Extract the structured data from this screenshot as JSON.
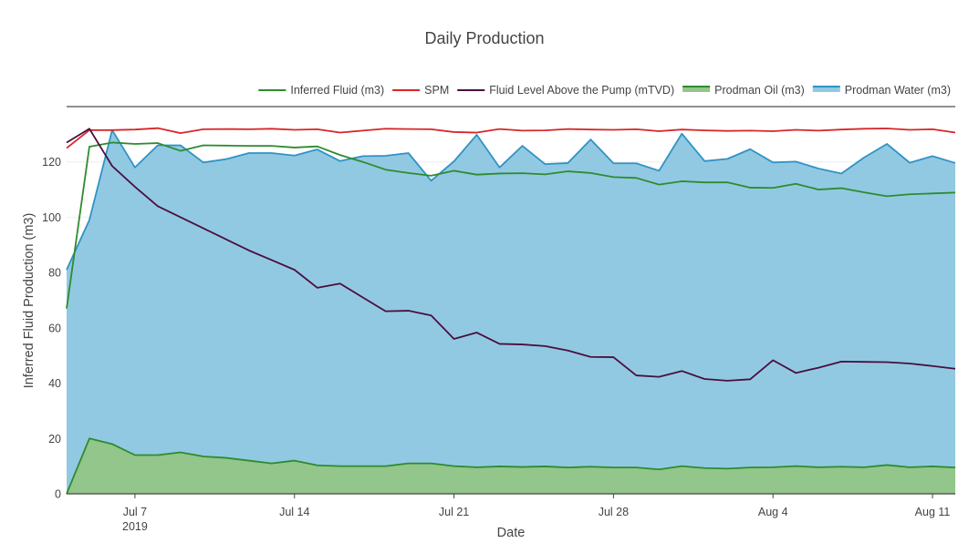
{
  "chart_data": {
    "type": "area",
    "title": "Daily Production",
    "xlabel": "Date",
    "ylabel": "Inferred Fluid Production (m3)",
    "xlim": [
      "2019-07-04",
      "2019-08-12"
    ],
    "ylim": [
      0,
      140
    ],
    "x_ticks": [
      {
        "date": "2019-07-07",
        "label": "Jul 7",
        "sublabel": "2019"
      },
      {
        "date": "2019-07-14",
        "label": "Jul 14",
        "sublabel": ""
      },
      {
        "date": "2019-07-21",
        "label": "Jul 21",
        "sublabel": ""
      },
      {
        "date": "2019-07-28",
        "label": "Jul 28",
        "sublabel": ""
      },
      {
        "date": "2019-08-04",
        "label": "Aug 4",
        "sublabel": ""
      },
      {
        "date": "2019-08-11",
        "label": "Aug 11",
        "sublabel": ""
      }
    ],
    "y_ticks": [
      0,
      20,
      40,
      60,
      80,
      100,
      120
    ],
    "grid": true,
    "legend_position": "top-right",
    "x": [
      "2019-07-04",
      "2019-07-05",
      "2019-07-06",
      "2019-07-07",
      "2019-07-08",
      "2019-07-09",
      "2019-07-10",
      "2019-07-11",
      "2019-07-12",
      "2019-07-13",
      "2019-07-14",
      "2019-07-15",
      "2019-07-16",
      "2019-07-17",
      "2019-07-18",
      "2019-07-19",
      "2019-07-20",
      "2019-07-21",
      "2019-07-22",
      "2019-07-23",
      "2019-07-24",
      "2019-07-25",
      "2019-07-26",
      "2019-07-27",
      "2019-07-28",
      "2019-07-29",
      "2019-07-30",
      "2019-07-31",
      "2019-08-01",
      "2019-08-02",
      "2019-08-03",
      "2019-08-04",
      "2019-08-05",
      "2019-08-06",
      "2019-08-07",
      "2019-08-08",
      "2019-08-09",
      "2019-08-10",
      "2019-08-11",
      "2019-08-12"
    ],
    "series": [
      {
        "name": "Inferred Fluid (m3)",
        "type": "line",
        "color": "#2e8b2e",
        "values": [
          67,
          125.5,
          127,
          126.5,
          126.8,
          124,
          126,
          125.9,
          125.8,
          125.8,
          125.2,
          125.6,
          122.5,
          120,
          117.2,
          116,
          115,
          116.8,
          115.4,
          115.8,
          115.9,
          115.5,
          116.6,
          116,
          114.5,
          114.2,
          111.8,
          113,
          112.6,
          112.6,
          110.7,
          110.6,
          112.1,
          110,
          110.5,
          109,
          107.6,
          108.3,
          108.6,
          108.9
        ]
      },
      {
        "name": "SPM",
        "type": "line",
        "color": "#d62728",
        "values": [
          125,
          131.5,
          131.5,
          131.7,
          132.2,
          130.4,
          131.8,
          131.9,
          131.8,
          132,
          131.6,
          131.8,
          130.6,
          131.3,
          132,
          131.9,
          131.8,
          130.8,
          130.6,
          131.9,
          131.3,
          131.4,
          131.9,
          131.7,
          131.6,
          131.8,
          131.1,
          131.7,
          131.4,
          131.2,
          131.3,
          131.1,
          131.6,
          131.3,
          131.7,
          132,
          132.1,
          131.6,
          131.8,
          130.6
        ]
      },
      {
        "name": "Fluid Level Above the Pump (mTVD)",
        "type": "line",
        "color": "#4a0f3f",
        "values": [
          127,
          132,
          118.5,
          111,
          104,
          100,
          96,
          92,
          88,
          84.5,
          81,
          74.5,
          76,
          71,
          66,
          66.2,
          64.5,
          56,
          58.3,
          54.2,
          54,
          53.4,
          51.8,
          49.5,
          49.4,
          42.8,
          42.3,
          44.4,
          41.5,
          40.9,
          41.4,
          48.3,
          43.7,
          45.6,
          47.8,
          47.7,
          47.6,
          47.1,
          46.2,
          45.2
        ]
      },
      {
        "name": "Prodman Oil (m3)",
        "type": "area",
        "color": "#2e8b2e",
        "fill": "#93c68a",
        "values": [
          0,
          20,
          18,
          14,
          14,
          15,
          13.5,
          13,
          12,
          11,
          12,
          10.3,
          10,
          10,
          10,
          11,
          11,
          10,
          9.6,
          9.9,
          9.7,
          9.9,
          9.5,
          9.8,
          9.5,
          9.5,
          8.8,
          10,
          9.3,
          9.1,
          9.5,
          9.6,
          10,
          9.6,
          9.8,
          9.6,
          10.4,
          9.6,
          9.9,
          9.5
        ]
      },
      {
        "name": "Prodman Water (m3)",
        "type": "area",
        "color": "#2e93c5",
        "fill": "#92c9e2",
        "values": [
          81,
          99,
          131.5,
          118,
          126,
          126,
          119.8,
          121,
          123.2,
          123.2,
          122.3,
          124.5,
          120.3,
          122.1,
          122.2,
          123.2,
          113.2,
          120.2,
          129.8,
          118,
          125.8,
          119.2,
          119.6,
          128.1,
          119.5,
          119.5,
          116.8,
          130.2,
          120.3,
          121.1,
          124.6,
          119.8,
          120.1,
          117.6,
          115.8,
          121.6,
          126.5,
          119.7,
          122.1,
          119.6
        ]
      }
    ]
  }
}
